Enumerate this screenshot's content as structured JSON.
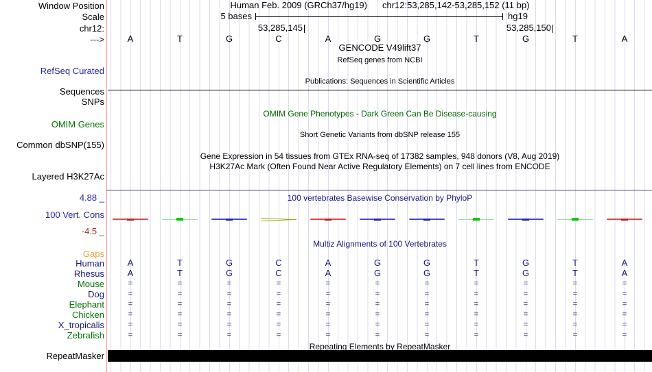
{
  "header": {
    "window_position_label": "Window Position",
    "assembly_title": "Human Feb. 2009 (GRCh37/hg19)",
    "position_title": "chr12:53,285,142-53,285,152 (11 bp)",
    "scale_label": "Scale",
    "scale_value": "5 bases",
    "assembly_short": "hg19",
    "chrom_label": "chr12:",
    "coord_left": "53,285,145",
    "coord_right": "53,285,150",
    "strand_arrow": "--->"
  },
  "sequence": {
    "bases": [
      "A",
      "T",
      "G",
      "C",
      "A",
      "G",
      "G",
      "T",
      "G",
      "T",
      "A"
    ]
  },
  "tracks": {
    "refseq": {
      "label": "RefSeq Curated",
      "title": "GENCODE V49lift37",
      "subtitle": "RefSeq genes from NCBI"
    },
    "publications": {
      "label": "Sequences",
      "title": "Publications: Sequences in Scientific Articles"
    },
    "snps_label": "SNPs",
    "omim": {
      "label": "OMIM Genes",
      "title": "OMIM Gene Phenotypes - Dark Green Can Be Disease-causing"
    },
    "dbsnp": {
      "label": "Common dbSNP(155)",
      "subtitle": "Short Genetic Variants from dbSNP release 155"
    },
    "gtex_title": "Gene Expression in 54 tissues from GTEx RNA-seq of 17382 samples, 948 donors (V8, Aug 2019)",
    "h3k27ac": {
      "label": "Layered H3K27Ac",
      "title": "H3K27Ac Mark (Often Found Near Active Regulatory Elements) on 7 cell lines from ENCODE"
    },
    "conservation": {
      "label": "100 Vert. Cons",
      "max_value": "4.88 _",
      "min_value": "-4.5 _",
      "title": "100 vertebrates Basewise Conservation by PhyloP",
      "base_colors": [
        "red",
        "green",
        "blue",
        "olive",
        "red",
        "blue",
        "blue",
        "green",
        "blue",
        "green",
        "red"
      ]
    },
    "multiz": {
      "title": "Multiz Alignments of 100 Vertebrates",
      "gaps_label": "Gaps",
      "rows": [
        {
          "name": "Human",
          "color": "navy",
          "cells": [
            "A",
            "T",
            "G",
            "C",
            "A",
            "G",
            "G",
            "T",
            "G",
            "T",
            "A"
          ]
        },
        {
          "name": "Rhesus",
          "color": "navy",
          "cells": [
            "A",
            "T",
            "G",
            "C",
            "A",
            "G",
            "G",
            "T",
            "G",
            "T",
            "A"
          ]
        },
        {
          "name": "Mouse",
          "color": "green",
          "cells": [
            "=",
            "=",
            "=",
            "=",
            "=",
            "=",
            "=",
            "=",
            "=",
            "=",
            "="
          ]
        },
        {
          "name": "Dog",
          "color": "navy",
          "cells": [
            "=",
            "=",
            "=",
            "=",
            "=",
            "=",
            "=",
            "=",
            "=",
            "=",
            "="
          ]
        },
        {
          "name": "Elephant",
          "color": "green",
          "cells": [
            "=",
            "=",
            "=",
            "=",
            "=",
            "=",
            "=",
            "=",
            "=",
            "=",
            "="
          ]
        },
        {
          "name": "Chicken",
          "color": "green",
          "cells": [
            "=",
            "=",
            "=",
            "=",
            "=",
            "=",
            "=",
            "=",
            "=",
            "=",
            "="
          ]
        },
        {
          "name": "X_tropicalis",
          "color": "navy",
          "cells": [
            "=",
            "=",
            "=",
            "=",
            "=",
            "=",
            "=",
            "=",
            "=",
            "=",
            "="
          ]
        },
        {
          "name": "Zebrafish",
          "color": "green",
          "cells": [
            "=",
            "=",
            "=",
            "=",
            "=",
            "=",
            "=",
            "=",
            "=",
            "=",
            "="
          ]
        }
      ]
    },
    "repeatmasker": {
      "label": "RepeatMasker",
      "title": "Repeating Elements by RepeatMasker"
    }
  },
  "colors": {
    "track_label_blue": "#2626AE",
    "dark_green": "#006400",
    "navy": "#16167E",
    "gaps_orange": "#E8A33D",
    "axis_maroon": "#993333",
    "phylop_red": "#E04444",
    "phylop_blue": "#4848CC",
    "phylop_green": "#00CC00",
    "phylop_olive": "#A8A818",
    "grid_line": "#DBDBF2",
    "edge_line_red": "#FF9B9B"
  }
}
